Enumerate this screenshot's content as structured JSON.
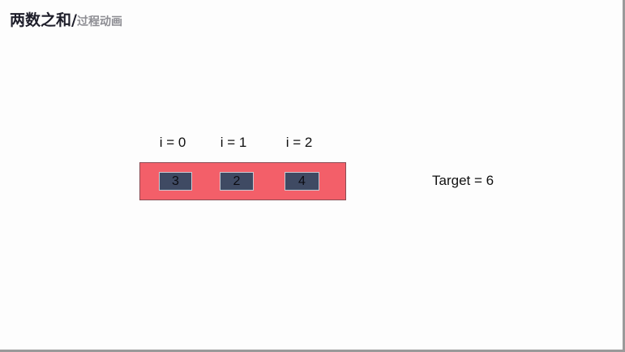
{
  "title": {
    "main": "两数之和",
    "separator": "/",
    "subtitle": "过程动画"
  },
  "indices": [
    "i = 0",
    "i = 1",
    "i = 2"
  ],
  "array": [
    "3",
    "2",
    "4"
  ],
  "target": "Target = 6",
  "colors": {
    "array_box": "#f35f69",
    "cell": "#3f4a63",
    "title": "#1e1e2a",
    "subtitle": "#8d8d93"
  }
}
